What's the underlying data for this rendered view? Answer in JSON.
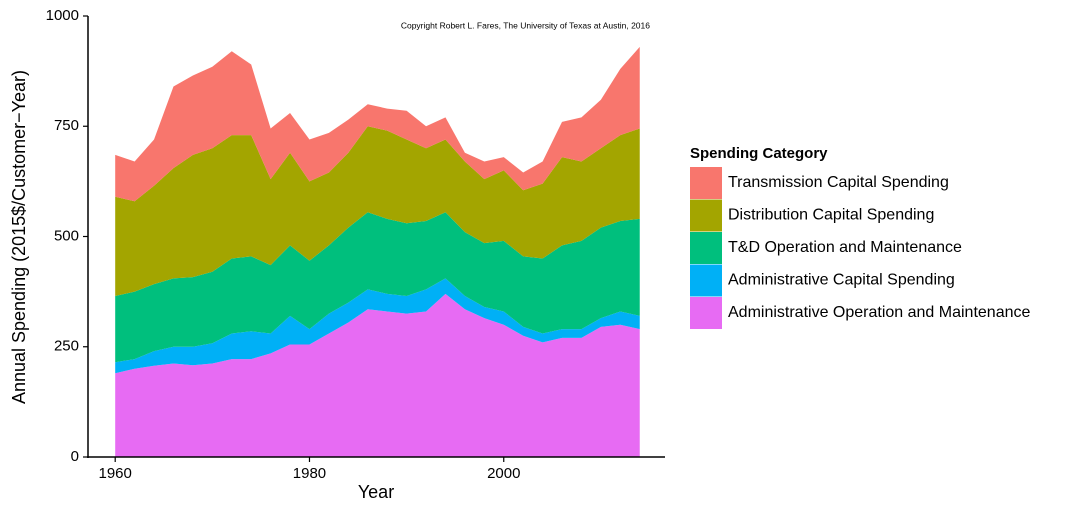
{
  "chart_data": {
    "type": "area",
    "x_label": "Year",
    "y_label": "Annual Spending (2015$/Customer−Year)",
    "annotation": "Copyright Robert L. Fares, The University of Texas at Austin, 2016",
    "legend_title": "Spending Category",
    "x": [
      1960,
      1962,
      1964,
      1966,
      1968,
      1970,
      1972,
      1974,
      1976,
      1978,
      1980,
      1982,
      1984,
      1986,
      1988,
      1990,
      1992,
      1994,
      1996,
      1998,
      2000,
      2002,
      2004,
      2006,
      2008,
      2010,
      2012,
      2014
    ],
    "series": [
      {
        "name": "Transmission Capital Spending",
        "color": "#F8766D",
        "values": [
          95,
          90,
          105,
          185,
          180,
          185,
          190,
          160,
          115,
          90,
          95,
          90,
          75,
          50,
          50,
          65,
          50,
          50,
          20,
          40,
          30,
          40,
          50,
          80,
          100,
          110,
          150,
          185
        ]
      },
      {
        "name": "Distribution Capital Spending",
        "color": "#A3A500",
        "values": [
          225,
          205,
          223,
          250,
          277,
          280,
          280,
          275,
          195,
          210,
          180,
          165,
          170,
          195,
          200,
          190,
          165,
          165,
          160,
          145,
          160,
          150,
          170,
          200,
          180,
          180,
          195,
          205
        ]
      },
      {
        "name": "T&D Operation and Maintenance",
        "color": "#00BF7D",
        "values": [
          150,
          153,
          152,
          155,
          158,
          162,
          170,
          170,
          155,
          160,
          155,
          155,
          170,
          175,
          170,
          165,
          155,
          150,
          145,
          145,
          160,
          160,
          170,
          190,
          200,
          205,
          205,
          220
        ]
      },
      {
        "name": "Administrative Capital Spending",
        "color": "#00B0F6",
        "values": [
          25,
          22,
          33,
          38,
          42,
          46,
          58,
          63,
          45,
          65,
          35,
          45,
          45,
          45,
          40,
          40,
          50,
          35,
          30,
          25,
          30,
          20,
          20,
          20,
          20,
          20,
          30,
          30
        ]
      },
      {
        "name": "Administrative Operation and Maintenance",
        "color": "#E76BF3",
        "values": [
          190,
          200,
          207,
          212,
          208,
          212,
          222,
          222,
          235,
          255,
          255,
          280,
          305,
          335,
          330,
          325,
          330,
          370,
          335,
          315,
          300,
          275,
          260,
          270,
          270,
          295,
          300,
          290
        ]
      }
    ],
    "stacked": true,
    "xlim": [
      1957.2,
      2016.6
    ],
    "xticks": [
      1960,
      1980,
      2000
    ],
    "ylim": [
      0,
      1000
    ],
    "yticks": [
      0,
      250,
      500,
      750,
      1000
    ],
    "legend_position": "right"
  }
}
